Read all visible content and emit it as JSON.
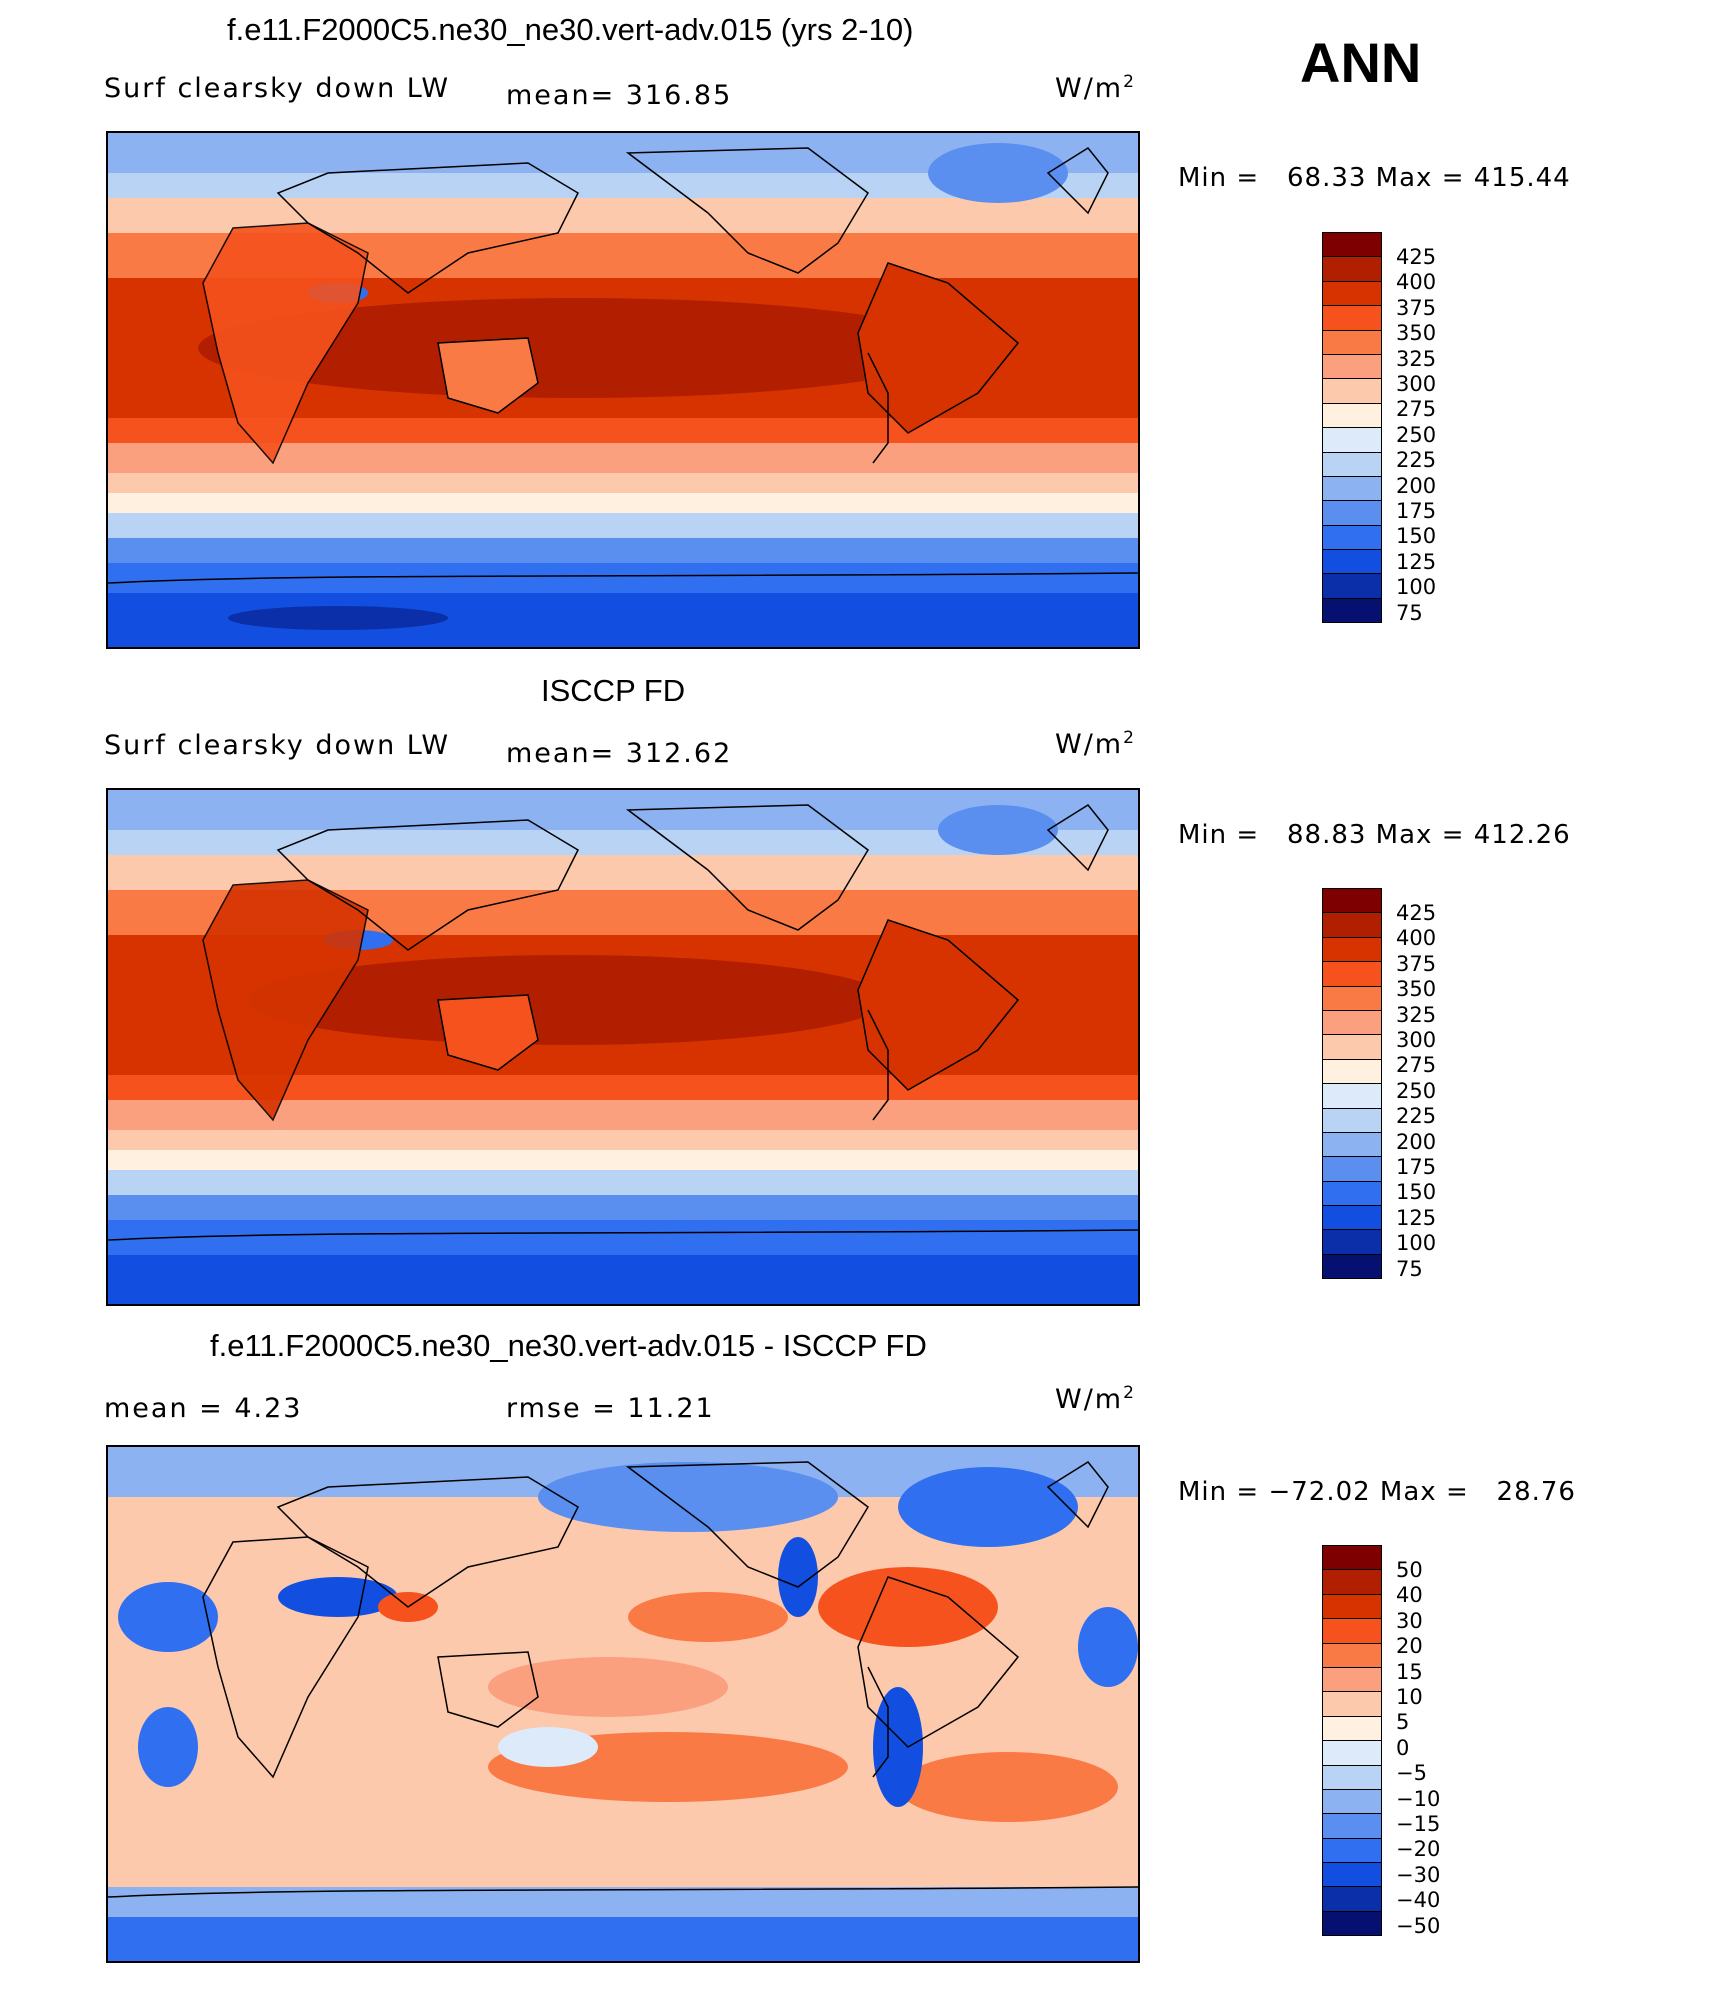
{
  "header": {
    "season": "ANN"
  },
  "panels": [
    {
      "title": "f.e11.F2000C5.ne30_ne30.vert-adv.015 (yrs 2-10)",
      "left_label": "Surf clearsky down LW",
      "mean_label": "mean= 316.85",
      "units_base": "W/m",
      "units_exp": "2",
      "minmax": "Min =   68.33 Max = 415.44",
      "colorbar_levels": [
        "425",
        "400",
        "375",
        "350",
        "325",
        "300",
        "275",
        "250",
        "225",
        "200",
        "175",
        "150",
        "125",
        "100",
        "75"
      ]
    },
    {
      "title": "ISCCP FD",
      "left_label": "Surf clearsky down LW",
      "mean_label": "mean= 312.62",
      "units_base": "W/m",
      "units_exp": "2",
      "minmax": "Min =   88.83 Max = 412.26",
      "colorbar_levels": [
        "425",
        "400",
        "375",
        "350",
        "325",
        "300",
        "275",
        "250",
        "225",
        "200",
        "175",
        "150",
        "125",
        "100",
        "75"
      ]
    },
    {
      "title": "f.e11.F2000C5.ne30_ne30.vert-adv.015 - ISCCP FD",
      "left_label": "mean =    4.23",
      "mean_label": "rmse =   11.21",
      "units_base": "W/m",
      "units_exp": "2",
      "minmax": "Min = −72.02 Max =   28.76",
      "colorbar_levels": [
        "50",
        "40",
        "30",
        "20",
        "15",
        "10",
        "5",
        "0",
        "−5",
        "−10",
        "−15",
        "−20",
        "−30",
        "−40",
        "−50"
      ]
    }
  ],
  "colors": {
    "colorbar": [
      "#7f0000",
      "#b21f00",
      "#d63300",
      "#f5521d",
      "#fa7a45",
      "#fba07e",
      "#fdc9ad",
      "#fff0e0",
      "#dceaf9",
      "#b9d3f5",
      "#8cb2f1",
      "#5a8ff0",
      "#2f6ff0",
      "#124fe0",
      "#0a2fa8",
      "#051070"
    ],
    "coastline": "#000000"
  }
}
